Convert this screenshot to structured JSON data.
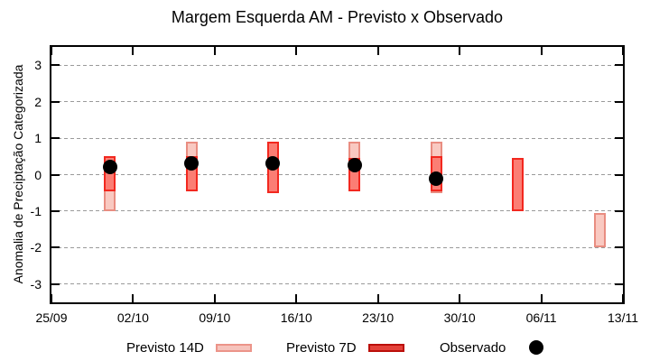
{
  "title": "Margem Esquerda AM - Previsto x Observado",
  "colors": {
    "previsto_14d_fill": "#f9c9c1",
    "previsto_14d_border": "#e98d81",
    "previsto_7d_fill": "#fb7e74",
    "previsto_7d_border": "#f2281f",
    "observado": "#000000",
    "grid": "#9a9a9a",
    "axis": "#000000",
    "background": "#ffffff"
  },
  "chart_data": {
    "type": "bar",
    "subtype": "range-bars-with-points",
    "title": "Margem Esquerda AM - Previsto x Observado",
    "xlabel": "",
    "ylabel": "Anomalia de Preciptação Categorizada",
    "ylim": [
      -3.5,
      3.5
    ],
    "y_ticks": [
      3,
      2,
      1,
      0,
      -1,
      -2,
      -3
    ],
    "grid": "dotted horizontal",
    "x_range_days": 49,
    "x_ticks": [
      {
        "label": "25/09",
        "day": 0
      },
      {
        "label": "02/10",
        "day": 7
      },
      {
        "label": "09/10",
        "day": 14
      },
      {
        "label": "16/10",
        "day": 21
      },
      {
        "label": "23/10",
        "day": 28
      },
      {
        "label": "30/10",
        "day": 35
      },
      {
        "label": "06/11",
        "day": 42
      },
      {
        "label": "13/11",
        "day": 49
      }
    ],
    "bars": [
      {
        "date": "30/09",
        "day": 5,
        "previsto_14d": [
          -1.0,
          0.5
        ],
        "previsto_7d": [
          -0.45,
          0.5
        ],
        "observado": 0.2
      },
      {
        "date": "07/10",
        "day": 12,
        "previsto_14d": [
          -0.45,
          0.9
        ],
        "previsto_7d": [
          -0.45,
          0.5
        ],
        "observado": 0.3
      },
      {
        "date": "14/10",
        "day": 19,
        "previsto_14d": null,
        "previsto_7d": [
          -0.5,
          0.9
        ],
        "observado": 0.3
      },
      {
        "date": "21/10",
        "day": 26,
        "previsto_14d": [
          -0.45,
          0.9
        ],
        "previsto_7d": [
          -0.45,
          0.45
        ],
        "observado": 0.25
      },
      {
        "date": "28/10",
        "day": 33,
        "previsto_14d": [
          -0.5,
          0.9
        ],
        "previsto_7d": [
          -0.45,
          0.5
        ],
        "observado": -0.1
      },
      {
        "date": "04/11",
        "day": 40,
        "previsto_14d": null,
        "previsto_7d": [
          -1.0,
          0.45
        ],
        "observado": null
      },
      {
        "date": "11/11",
        "day": 47,
        "previsto_14d": [
          -2.0,
          -1.05
        ],
        "previsto_7d": null,
        "observado": null
      }
    ],
    "legend": [
      {
        "label": "Previsto 14D",
        "swatch": "p14"
      },
      {
        "label": "Previsto 7D",
        "swatch": "p7"
      },
      {
        "label": "Observado",
        "swatch": "obs"
      }
    ],
    "legend_position": "below-plot"
  }
}
